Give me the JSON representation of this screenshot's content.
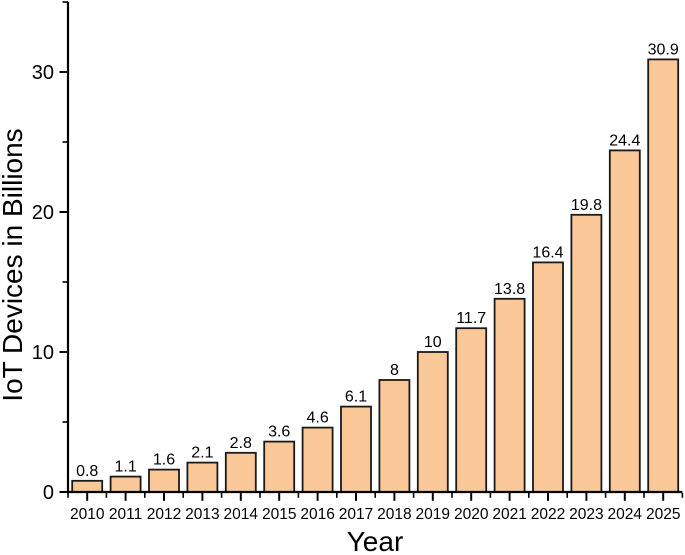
{
  "chart_data": {
    "type": "bar",
    "title": "",
    "xlabel": "Year",
    "ylabel": "IoT Devices in Billions",
    "categories": [
      "2010",
      "2011",
      "2012",
      "2013",
      "2014",
      "2015",
      "2016",
      "2017",
      "2018",
      "2019",
      "2020",
      "2021",
      "2022",
      "2023",
      "2024",
      "2025"
    ],
    "values": [
      0.8,
      1.1,
      1.6,
      2.1,
      2.8,
      3.6,
      4.6,
      6.1,
      8,
      10,
      11.7,
      13.8,
      16.4,
      19.8,
      24.4,
      30.9
    ],
    "value_labels": [
      "0.8",
      "1.1",
      "1.6",
      "2.1",
      "2.8",
      "3.6",
      "4.6",
      "6.1",
      "8",
      "10",
      "11.7",
      "13.8",
      "16.4",
      "19.8",
      "24.4",
      "30.9"
    ],
    "ylim": [
      0,
      35
    ],
    "yticks_major": [
      0,
      10,
      20,
      30
    ],
    "yticks_minor": [
      5,
      15,
      25,
      35
    ],
    "grid": false,
    "legend_position": "none",
    "colors": {
      "bar_fill": "#FAC897",
      "bar_stroke": "#1A1A1A",
      "axis": "#000000",
      "text": "#000000",
      "background": "#FFFFFF"
    }
  }
}
